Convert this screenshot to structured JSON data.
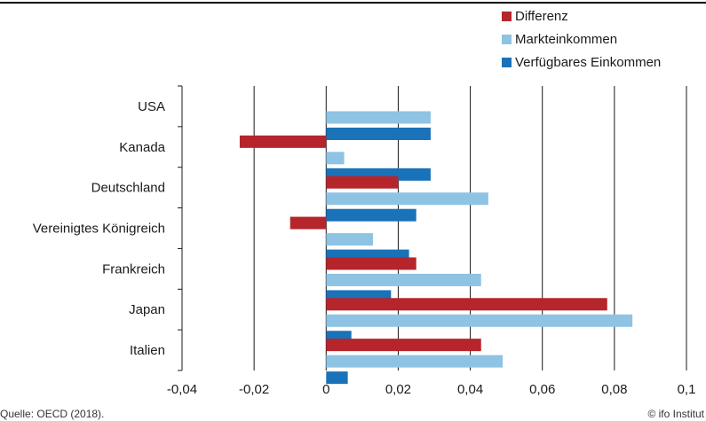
{
  "chart_data": {
    "type": "bar",
    "orientation": "horizontal",
    "categories": [
      "USA",
      "Kanada",
      "Deutschland",
      "Vereinigtes Königreich",
      "Frankreich",
      "Japan",
      "Italien"
    ],
    "series": [
      {
        "name": "Differenz",
        "color": "#b5252b",
        "values": [
          0,
          -0.024,
          0.02,
          -0.01,
          0.025,
          0.078,
          0.043
        ]
      },
      {
        "name": "Markteinkommen",
        "color": "#8ec3e3",
        "values": [
          0.029,
          0.005,
          0.045,
          0.013,
          0.043,
          0.085,
          0.049
        ]
      },
      {
        "name": "Verfügbares Einkommen",
        "color": "#1a72b8",
        "values": [
          0.029,
          0.029,
          0.025,
          0.023,
          0.018,
          0.007,
          0.006
        ]
      }
    ],
    "xlim": [
      -0.04,
      0.1
    ],
    "xticks": [
      -0.04,
      -0.02,
      0,
      0.02,
      0.04,
      0.06,
      0.08,
      0.1
    ],
    "xtick_labels": [
      "-0,04",
      "-0,02",
      "0",
      "0,02",
      "0,04",
      "0,06",
      "0,08",
      "0,1"
    ],
    "grid": "vertical",
    "legend_position": "top-right"
  },
  "footer": {
    "source": "Quelle: OECD (2018).",
    "credit": "© ifo Institut"
  }
}
